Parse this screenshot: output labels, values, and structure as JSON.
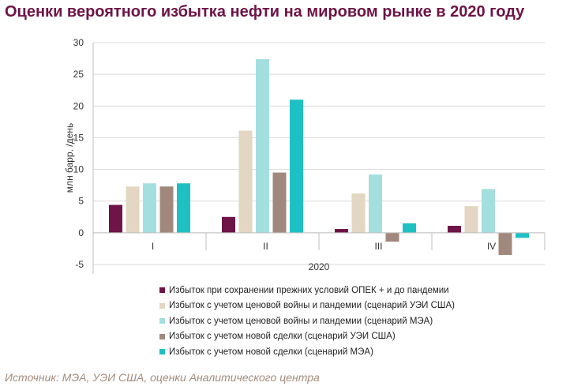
{
  "title": "Оценки вероятного избытка нефти на мировом рынке в 2020 году",
  "source": "Источник: МЭА, УЭИ США, оценки Аналитического центра",
  "colors": {
    "grid": "#d9d9d9",
    "axis": "#bfbfbf"
  },
  "chart_data": {
    "type": "bar",
    "categories": [
      "I",
      "II",
      "III",
      "IV"
    ],
    "xlabel": "2020",
    "ylabel": "млн барр. /день",
    "ylim": [
      -5,
      30
    ],
    "yticks": [
      -5,
      0,
      5,
      10,
      15,
      20,
      25,
      30
    ],
    "grid": true,
    "legend_position": "bottom",
    "series": [
      {
        "name": "Избыток при сохранении прежних условий ОПЕК + и до пандемии",
        "color": "#6e1446",
        "values": [
          4.4,
          2.5,
          0.6,
          1.1
        ]
      },
      {
        "name": "Избыток с учетом ценовой войны и пандемии (сценарий УЭИ США)",
        "color": "#e3d6c2",
        "values": [
          7.3,
          16.1,
          6.2,
          4.2
        ]
      },
      {
        "name": "Избыток с учетом ценовой войны и пандемии (сценарий МЭА)",
        "color": "#a4dfe0",
        "values": [
          7.8,
          27.4,
          9.2,
          6.9
        ]
      },
      {
        "name": "Избыток с учетом новой сделки (сценарий УЭИ США)",
        "color": "#a0887c",
        "values": [
          7.3,
          9.5,
          -1.4,
          -3.5
        ]
      },
      {
        "name": "Избыток с учетом новой сделки (сценарий МЭА)",
        "color": "#1ec0c4",
        "values": [
          7.8,
          21.0,
          1.5,
          -0.8
        ]
      }
    ]
  }
}
